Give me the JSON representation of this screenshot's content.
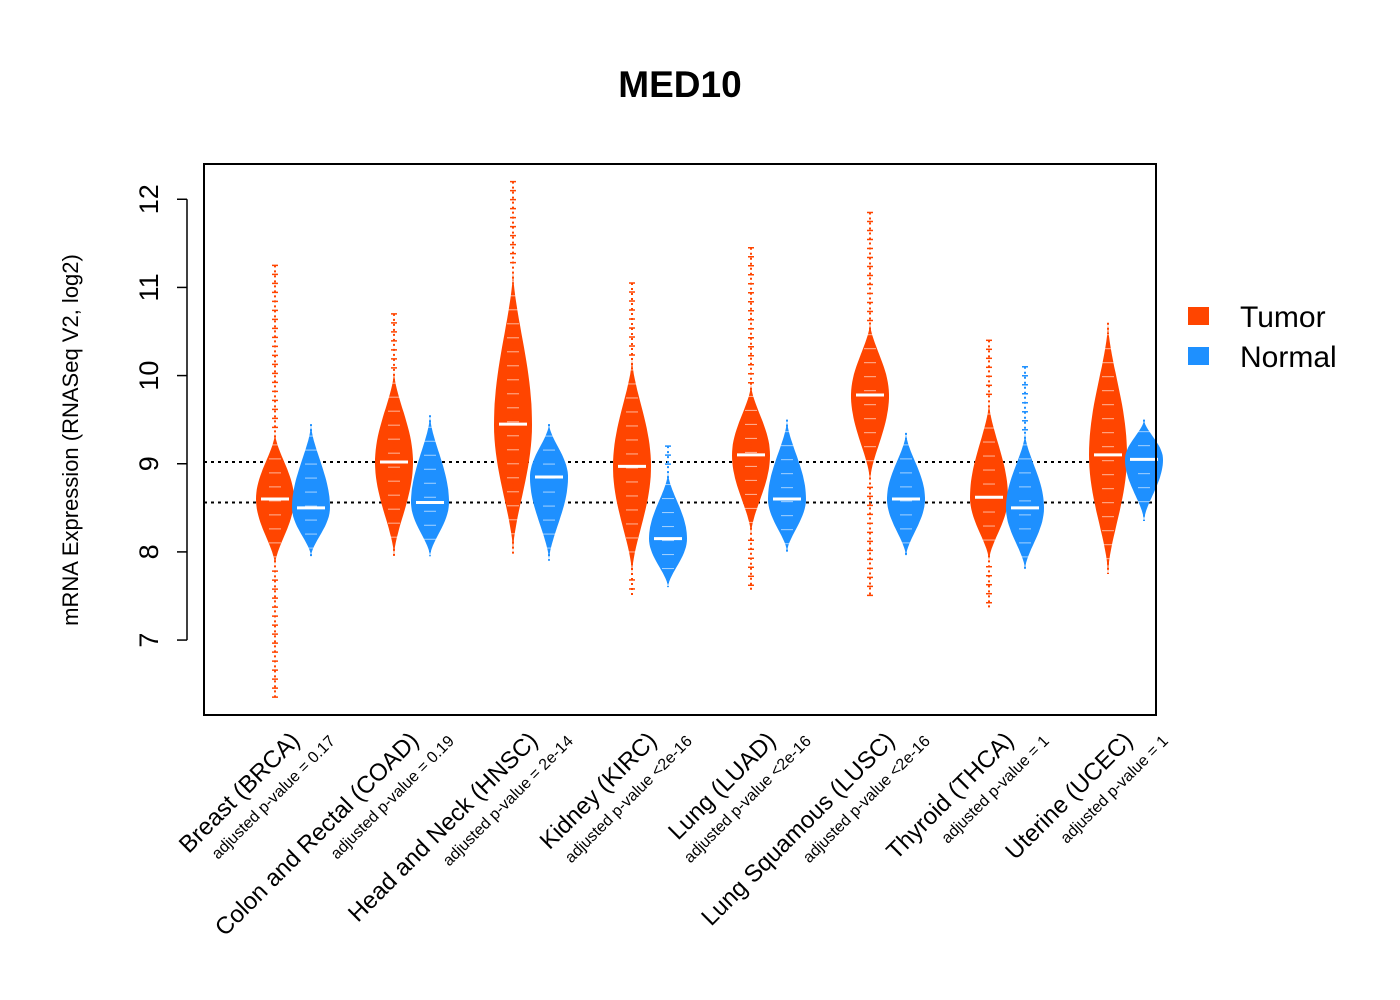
{
  "colors": {
    "tumor": "#FF4500",
    "normal": "#1E90FF"
  },
  "chart_data": {
    "type": "violin",
    "title": "MED10",
    "ylabel": "mRNA Expression (RNASeq V2, log2)",
    "ylim": [
      6.15,
      12.4
    ],
    "yticks": [
      7,
      8,
      9,
      10,
      11,
      12
    ],
    "reference_lines": [
      9.02,
      8.56
    ],
    "legend": {
      "position": "right",
      "entries": [
        "Tumor",
        "Normal"
      ]
    },
    "categories": [
      {
        "label": "Breast (BRCA)",
        "pvalue": "adjusted p-value = 0.17",
        "tumor": {
          "median": 8.6,
          "lo": 7.85,
          "hi": 9.35,
          "range": [
            6.35,
            11.25
          ]
        },
        "normal": {
          "median": 8.5,
          "lo": 7.95,
          "hi": 9.45,
          "range": [
            7.95,
            9.45
          ]
        }
      },
      {
        "label": "Colon and Rectal (COAD)",
        "pvalue": "adjusted p-value = 0.19",
        "tumor": {
          "median": 9.02,
          "lo": 7.95,
          "hi": 10.05,
          "range": [
            7.95,
            10.7
          ]
        },
        "normal": {
          "median": 8.56,
          "lo": 7.95,
          "hi": 9.55,
          "range": [
            7.95,
            9.55
          ]
        }
      },
      {
        "label": "Head and Neck (HNSC)",
        "pvalue": "adjusted p-value = 2e-14",
        "tumor": {
          "median": 9.45,
          "lo": 8.0,
          "hi": 11.2,
          "range": [
            7.95,
            12.2
          ]
        },
        "normal": {
          "median": 8.85,
          "lo": 7.9,
          "hi": 9.45,
          "range": [
            7.9,
            9.45
          ]
        }
      },
      {
        "label": "Kidney (KIRC)",
        "pvalue": "adjusted p-value <2e-16",
        "tumor": {
          "median": 8.97,
          "lo": 7.75,
          "hi": 10.2,
          "range": [
            7.48,
            11.05
          ]
        },
        "normal": {
          "median": 8.15,
          "lo": 7.6,
          "hi": 8.9,
          "range": [
            7.6,
            9.2
          ]
        }
      },
      {
        "label": "Lung (LUAD)",
        "pvalue": "adjusted p-value <2e-16",
        "tumor": {
          "median": 9.1,
          "lo": 8.2,
          "hi": 9.9,
          "range": [
            7.55,
            11.45
          ]
        },
        "normal": {
          "median": 8.6,
          "lo": 8.0,
          "hi": 9.5,
          "range": [
            8.0,
            9.5
          ]
        }
      },
      {
        "label": "Lung Squamous (LUSC)",
        "pvalue": "adjusted p-value <2e-16",
        "tumor": {
          "median": 9.78,
          "lo": 8.8,
          "hi": 10.6,
          "range": [
            7.5,
            11.85
          ]
        },
        "normal": {
          "median": 8.6,
          "lo": 7.95,
          "hi": 9.35,
          "range": [
            7.95,
            9.35
          ]
        }
      },
      {
        "label": "Thyroid (THCA)",
        "pvalue": "adjusted p-value = 1",
        "tumor": {
          "median": 8.62,
          "lo": 7.9,
          "hi": 9.7,
          "range": [
            7.35,
            10.4
          ]
        },
        "normal": {
          "median": 8.5,
          "lo": 7.8,
          "hi": 9.35,
          "range": [
            7.8,
            10.1
          ]
        }
      },
      {
        "label": "Uterine (UCEC)",
        "pvalue": "adjusted p-value = 1",
        "tumor": {
          "median": 9.1,
          "lo": 7.75,
          "hi": 10.6,
          "range": [
            7.75,
            10.6
          ]
        },
        "normal": {
          "median": 9.05,
          "lo": 8.35,
          "hi": 9.5,
          "range": [
            8.35,
            9.5
          ]
        }
      }
    ]
  }
}
